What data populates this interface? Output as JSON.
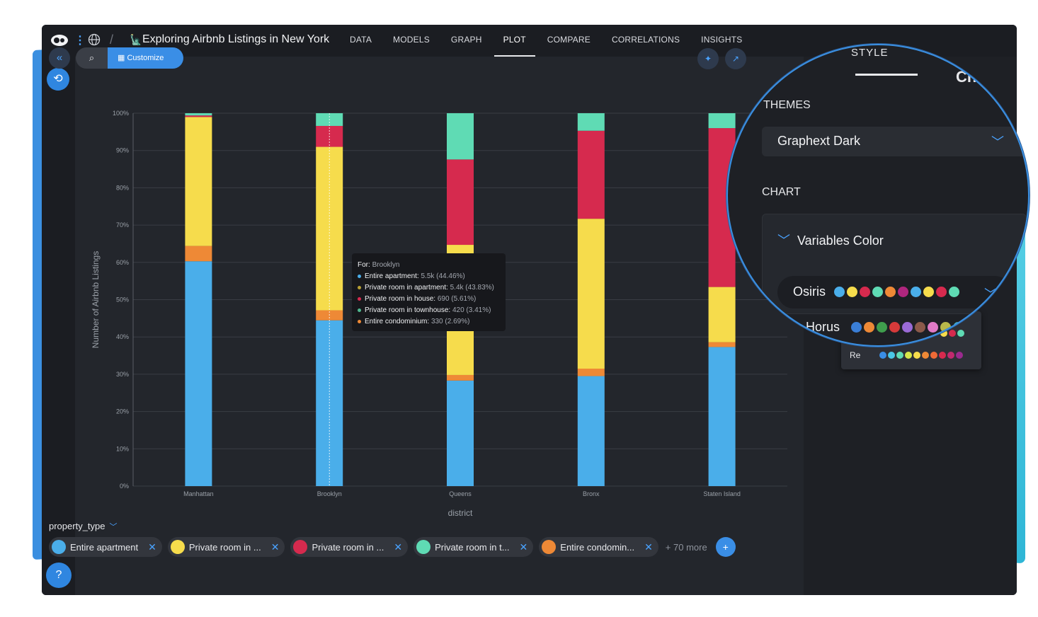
{
  "header": {
    "title": "Exploring Airbnb Listings in New York",
    "nav_tabs": [
      "DATA",
      "MODELS",
      "GRAPH",
      "PLOT",
      "COMPARE",
      "CORRELATIONS",
      "INSIGHTS"
    ],
    "active_tab": "PLOT"
  },
  "toolbar": {
    "customize_label": "Customize"
  },
  "legend": {
    "title": "property_type",
    "chips": [
      {
        "label": "Entire apartment",
        "color": "#4aaeea"
      },
      {
        "label": "Private room in ...",
        "color": "#f6dc4c"
      },
      {
        "label": "Private room in ...",
        "color": "#d62a4e"
      },
      {
        "label": "Private room in t...",
        "color": "#5fdbb4"
      },
      {
        "label": "Entire condomin...",
        "color": "#ee8936"
      }
    ],
    "more_label": "+ 70 more"
  },
  "tooltip": {
    "for_label": "For:",
    "for_value": "Brooklyn",
    "rows": [
      {
        "label": "Entire apartment:",
        "value": "5.5k (44.46%)",
        "color": "#4aaeea"
      },
      {
        "label": "Private room in apartment:",
        "value": "5.4k (43.83%)",
        "color": "#b8a033"
      },
      {
        "label": "Private room in house:",
        "value": "690 (5.61%)",
        "color": "#d62a4e"
      },
      {
        "label": "Private room in townhouse:",
        "value": "420 (3.41%)",
        "color": "#4fb88f"
      },
      {
        "label": "Entire condominium:",
        "value": "330 (2.69%)",
        "color": "#ee8936"
      }
    ]
  },
  "panel": {
    "tab": "STYLE",
    "heading_fragment": "Chart",
    "themes_label": "THEMES",
    "theme_value": "Graphext Dark",
    "chart_label": "CHART",
    "variables_color_label": "Variables Color",
    "palette_selected": "Osiris",
    "palette_selected_colors": [
      "#4aaeea",
      "#f6dc4c",
      "#d62a4e",
      "#5fdbb4",
      "#ee8936",
      "#b0267e",
      "#4aaeea",
      "#f6dc4c",
      "#d62a4e",
      "#5fdbb4"
    ],
    "palette_option": "Horus",
    "palette_option_colors": [
      "#3a7ed6",
      "#ee8936",
      "#3f9e4d",
      "#d63a3a",
      "#9a6ad6",
      "#8c5a4a",
      "#e07ac6",
      "#b8b84a",
      "#4ac6d6"
    ],
    "ghost_option": "Re",
    "ghost_colors": [
      "#3a8ee6",
      "#4ac6e6",
      "#5fdbb4",
      "#d6e64a",
      "#f6dc4c",
      "#ee8936",
      "#ee6a36",
      "#d62a4e",
      "#c02a6e",
      "#9a2a8e"
    ],
    "ghost_partial_colors": [
      "#f6dc4c",
      "#d62a4e",
      "#5fdbb4"
    ]
  },
  "chart_data": {
    "type": "bar",
    "stacked": true,
    "xlabel": "district",
    "ylabel": "Number of Airbnb Listings",
    "y_tick_labels": [
      "0%",
      "10%",
      "20%",
      "30%",
      "40%",
      "50%",
      "60%",
      "70%",
      "80%",
      "90%",
      "100%"
    ],
    "ylim": [
      0,
      100
    ],
    "categories": [
      "Manhattan",
      "Brooklyn",
      "Queens",
      "Bronx",
      "Staten Island"
    ],
    "grid": true,
    "series": [
      {
        "color": "#4aaeea",
        "values": [
          60.3,
          44.46,
          28.3,
          29.5,
          37.3
        ]
      },
      {
        "color": "#ee8936",
        "values": [
          4.1,
          2.69,
          1.5,
          2.0,
          1.3
        ]
      },
      {
        "color": "#f6dc4c",
        "values": [
          34.6,
          43.83,
          34.9,
          40.2,
          14.8
        ]
      },
      {
        "color": "#d62a4e",
        "values": [
          0.4,
          5.61,
          22.9,
          23.6,
          42.6
        ]
      },
      {
        "color": "#5fdbb4",
        "values": [
          0.6,
          3.41,
          12.4,
          4.7,
          4.0
        ]
      }
    ]
  }
}
